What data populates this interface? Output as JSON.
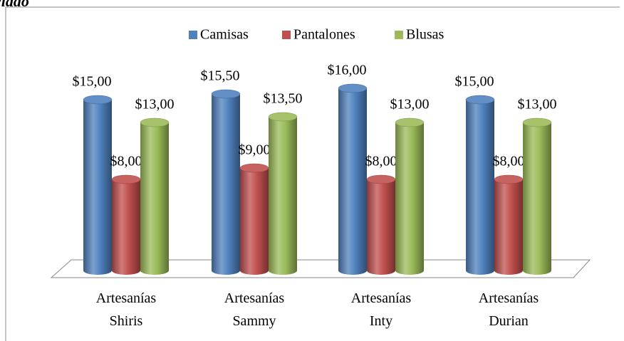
{
  "chart_data": {
    "type": "bar3d",
    "title": "ciado",
    "categories": [
      "Artesanías Shiris",
      "Artesanías Sammy",
      "Artesanías Inty",
      "Artesanías Durian"
    ],
    "series": [
      {
        "name": "Camisas",
        "color": "#4f81bd",
        "values": [
          15,
          15.5,
          16,
          15
        ],
        "value_labels": [
          "$15,00",
          "$15,50",
          "$16,00",
          "$15,00"
        ]
      },
      {
        "name": "Pantalones",
        "color": "#c0504d",
        "values": [
          8,
          9,
          8,
          8
        ],
        "value_labels": [
          "$8,00",
          "$9,00",
          "$8,00",
          "$8,00"
        ]
      },
      {
        "name": "Blusas",
        "color": "#9bbb59",
        "values": [
          13,
          13.5,
          13,
          13
        ],
        "value_labels": [
          "$13,00",
          "$13,50",
          "$13,00",
          "$13,00"
        ]
      }
    ],
    "legend": "top"
  }
}
